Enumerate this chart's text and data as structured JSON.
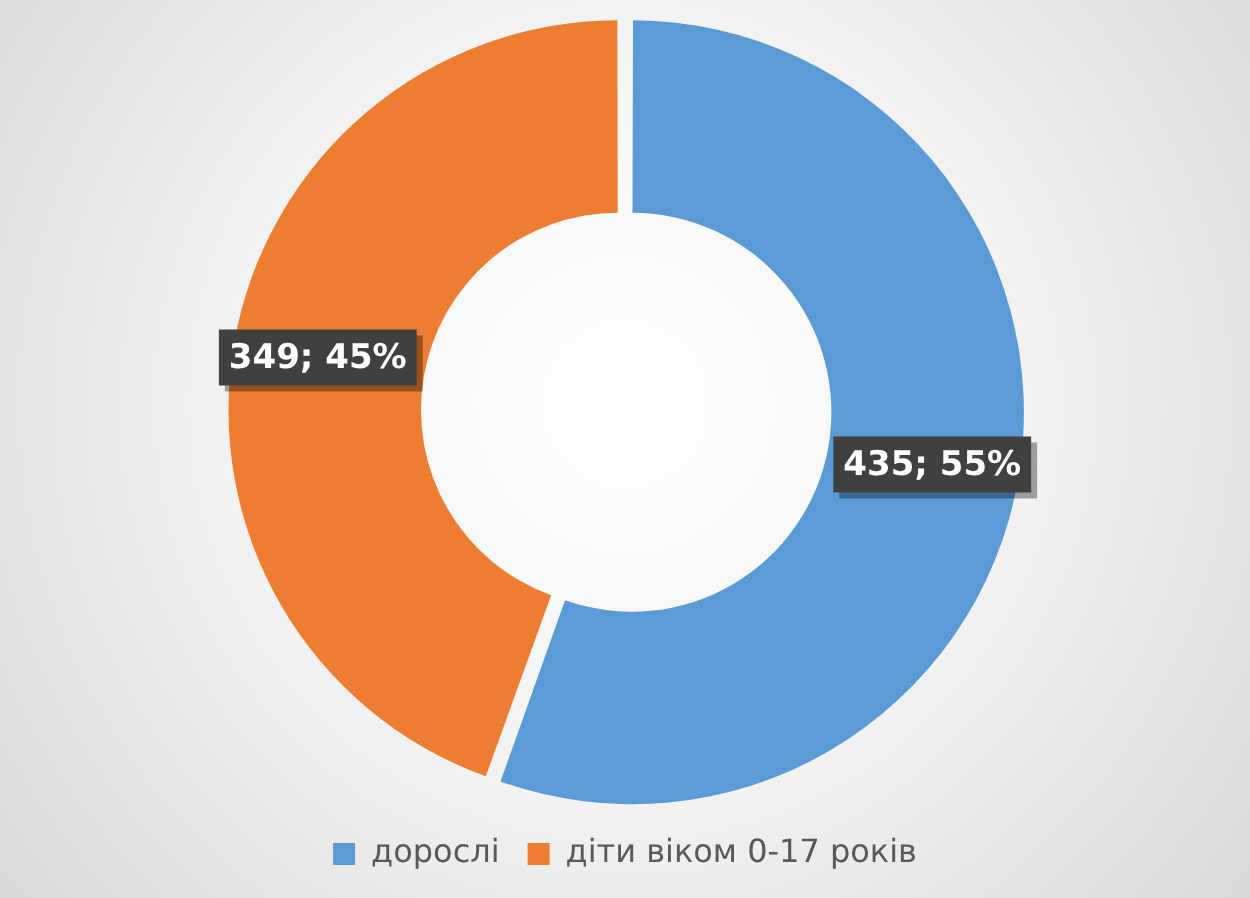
{
  "chart_data": {
    "type": "donut",
    "categories": [
      "дорослі",
      "діти віком 0-17 років"
    ],
    "values": [
      435,
      349
    ],
    "colors": [
      "#5b9bd5",
      "#ed7d31"
    ],
    "value_labels": [
      "435; 55%",
      "349; 45%"
    ],
    "legend": "bottom"
  }
}
